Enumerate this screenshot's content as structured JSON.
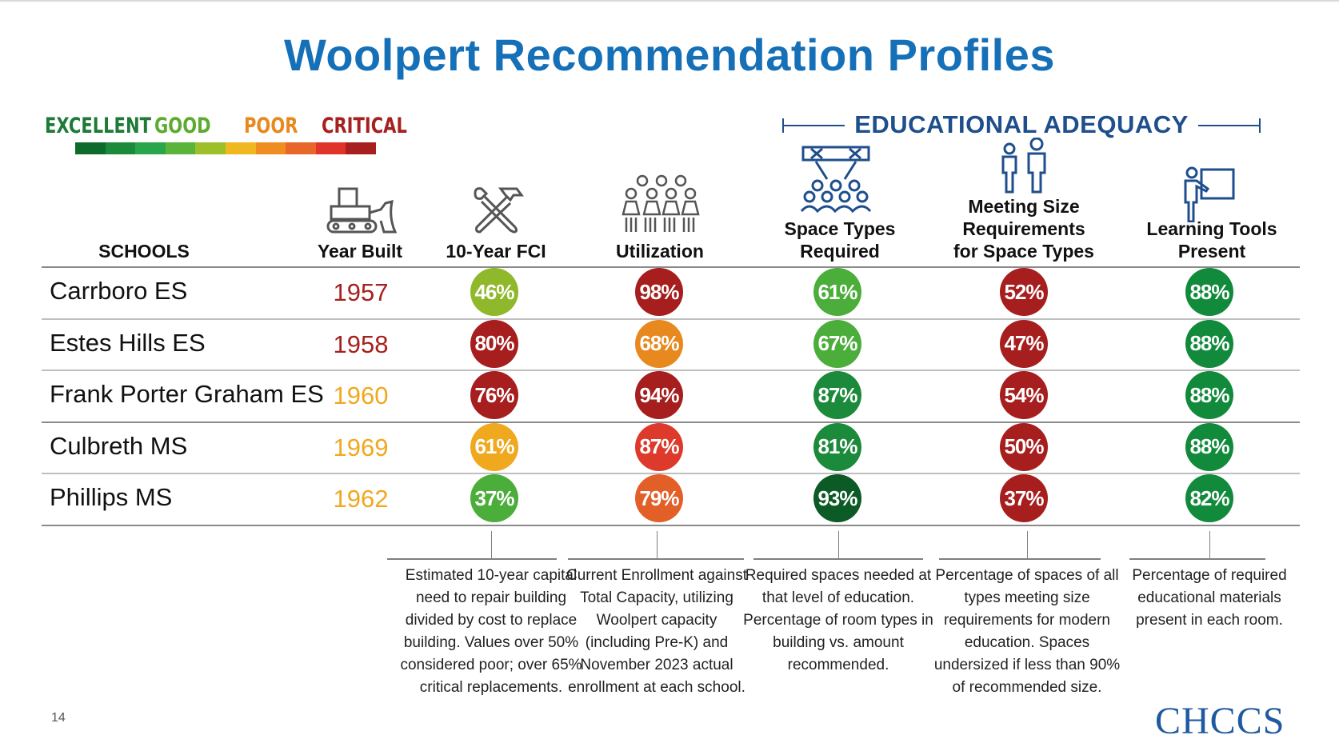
{
  "title": "Woolpert Recommendation Profiles",
  "legend": {
    "labels": [
      {
        "text": "EXCELLENT",
        "color": "#1e7a36"
      },
      {
        "text": "GOOD",
        "color": "#5aab2e"
      },
      {
        "text": "POOR",
        "color": "#e8891f"
      },
      {
        "text": "CRITICAL",
        "color": "#a5201f"
      }
    ],
    "scale_colors": [
      "#0f6b2c",
      "#1b8a3a",
      "#2aa64a",
      "#5ab43a",
      "#9dbf2a",
      "#f0b820",
      "#ef8c22",
      "#e8662a",
      "#e0332a",
      "#a81f1f"
    ]
  },
  "edu_header": "EDUCATIONAL ADEQUACY",
  "headers": {
    "schools": "SCHOOLS",
    "year_built": "Year Built",
    "fci": "10-Year FCI",
    "utilization": "Utilization",
    "space_types": [
      "Space Types",
      "Required"
    ],
    "meeting_size": [
      "Meeting Size",
      "Requirements",
      "for Space Types"
    ],
    "learning_tools": [
      "Learning Tools",
      "Present"
    ]
  },
  "rows": [
    {
      "school": "Carrboro ES",
      "year": "1957",
      "year_color": "#a5201f",
      "fci": {
        "v": "46%",
        "c": "#8fb82a"
      },
      "util": {
        "v": "98%",
        "c": "#a61e1e"
      },
      "space": {
        "v": "61%",
        "c": "#4cae3a"
      },
      "meet": {
        "v": "52%",
        "c": "#a61e1e"
      },
      "tools": {
        "v": "88%",
        "c": "#128a3c"
      }
    },
    {
      "school": "Estes Hills ES",
      "year": "1958",
      "year_color": "#a5201f",
      "fci": {
        "v": "80%",
        "c": "#a61e1e"
      },
      "util": {
        "v": "68%",
        "c": "#e8891f"
      },
      "space": {
        "v": "67%",
        "c": "#4cae3a"
      },
      "meet": {
        "v": "47%",
        "c": "#a61e1e"
      },
      "tools": {
        "v": "88%",
        "c": "#128a3c"
      }
    },
    {
      "school": "Frank Porter Graham ES",
      "year": "1960",
      "year_color": "#f0a81e",
      "fci": {
        "v": "76%",
        "c": "#a61e1e"
      },
      "util": {
        "v": "94%",
        "c": "#a61e1e"
      },
      "space": {
        "v": "87%",
        "c": "#1b8a3a"
      },
      "meet": {
        "v": "54%",
        "c": "#a61e1e"
      },
      "tools": {
        "v": "88%",
        "c": "#128a3c"
      }
    },
    {
      "school": "Culbreth MS",
      "year": "1969",
      "year_color": "#f0a81e",
      "fci": {
        "v": "61%",
        "c": "#f0a81e"
      },
      "util": {
        "v": "87%",
        "c": "#de3a2c"
      },
      "space": {
        "v": "81%",
        "c": "#1b8a3a"
      },
      "meet": {
        "v": "50%",
        "c": "#a61e1e"
      },
      "tools": {
        "v": "88%",
        "c": "#128a3c"
      }
    },
    {
      "school": "Phillips MS",
      "year": "1962",
      "year_color": "#f0a81e",
      "fci": {
        "v": "37%",
        "c": "#4cae3a"
      },
      "util": {
        "v": "79%",
        "c": "#e25f28"
      },
      "space": {
        "v": "93%",
        "c": "#0c5a25"
      },
      "meet": {
        "v": "37%",
        "c": "#a61e1e"
      },
      "tools": {
        "v": "82%",
        "c": "#128a3c"
      }
    }
  ],
  "notes": {
    "fci": [
      "Estimated 10-year capital",
      "need to repair building",
      "divided by cost to replace",
      "building. Values over 50%",
      "considered poor; over 65%",
      "critical replacements."
    ],
    "util": [
      "Current Enrollment against",
      "Total Capacity, utilizing",
      "Woolpert capacity",
      "(including Pre-K) and",
      "November 2023 actual",
      "enrollment at each school."
    ],
    "space": [
      "Required spaces needed at",
      "that level of education.",
      "Percentage of room types in",
      "building vs. amount",
      "recommended."
    ],
    "meet": [
      "Percentage of spaces of all",
      "types meeting size",
      "requirements for modern",
      "education. Spaces",
      "undersized if less than 90%",
      "of recommended size."
    ],
    "tools": [
      "Percentage of required",
      "educational materials",
      "present in each room."
    ]
  },
  "icons": [
    "bulldozer-icon",
    "wrench-hammer-icon",
    "students-icon",
    "classroom-icon",
    "people-icon",
    "teacher-board-icon"
  ],
  "page_number": "14",
  "logo_text": "CHCCS"
}
